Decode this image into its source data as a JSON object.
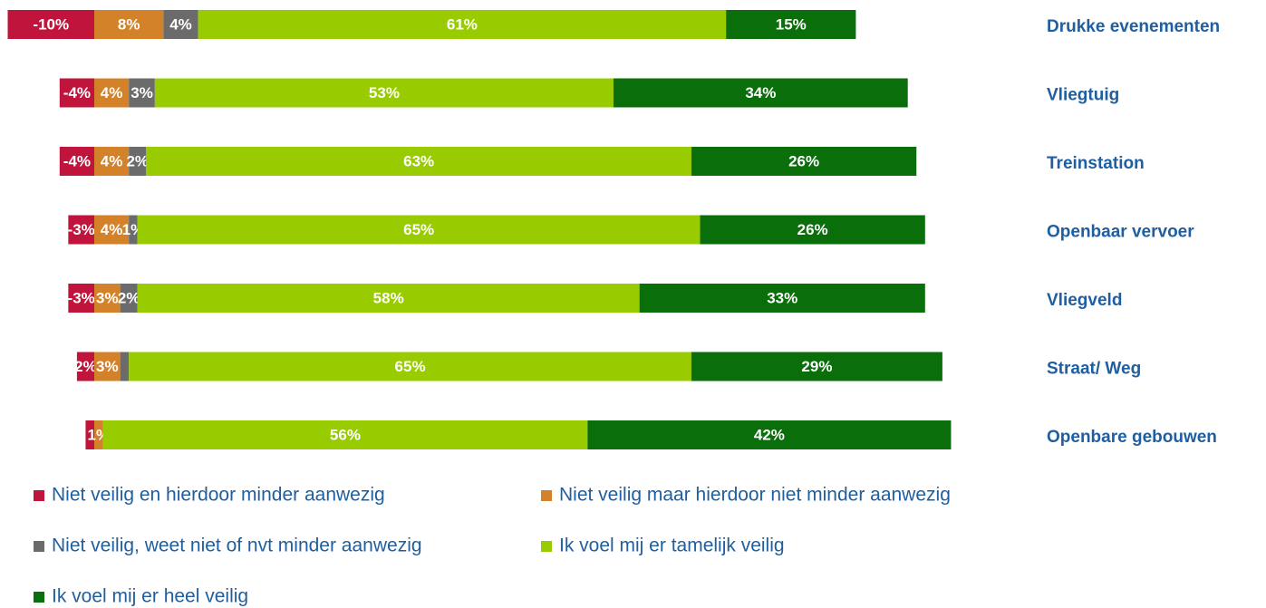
{
  "chart_data": {
    "type": "diverging-stacked-bar",
    "categories": [
      "Drukke evenementen",
      "Vliegtuig",
      "Treinstation",
      "Openbaar vervoer",
      "Vliegveld",
      "Straat/ Weg",
      "Openbare gebouwen"
    ],
    "series": [
      {
        "name": "Niet veilig en hierdoor minder aanwezig",
        "color": "#c0143c",
        "values": [
          -10,
          -4,
          -4,
          -3,
          -3,
          -2,
          -1
        ],
        "value_labels": [
          "-10%",
          "-4%",
          "-4%",
          "-3%",
          "-3%",
          "2%",
          null
        ]
      },
      {
        "name": "Niet veilig maar hierdoor niet minder aanwezig",
        "color": "#d4822a",
        "values": [
          8,
          4,
          4,
          4,
          3,
          3,
          1
        ],
        "value_labels": [
          "8%",
          "4%",
          "4%",
          "4%",
          "3%",
          "3%",
          "1%"
        ]
      },
      {
        "name": "Niet veilig, weet niet of nvt minder aanwezig",
        "color": "#6b6b6b",
        "values": [
          4,
          3,
          2,
          1,
          2,
          1,
          0
        ],
        "value_labels": [
          "4%",
          "3%",
          "2%",
          "1%",
          "2%",
          null,
          null
        ]
      },
      {
        "name": "Ik voel mij er tamelijk veilig",
        "color": "#99cc00",
        "values": [
          61,
          53,
          63,
          65,
          58,
          65,
          56
        ],
        "value_labels": [
          "61%",
          "53%",
          "63%",
          "65%",
          "58%",
          "65%",
          "56%"
        ]
      },
      {
        "name": "Ik voel mij er heel veilig",
        "color": "#0a6e0a",
        "values": [
          15,
          34,
          26,
          26,
          33,
          29,
          42
        ],
        "value_labels": [
          "15%",
          "34%",
          "26%",
          "26%",
          "33%",
          "29%",
          "42%"
        ]
      }
    ]
  }
}
